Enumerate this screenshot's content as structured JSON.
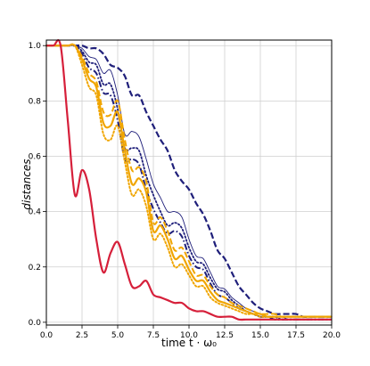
{
  "chart_data": {
    "type": "line",
    "title": "",
    "xlabel": "time t · ω₀",
    "ylabel": "distances",
    "xlim": [
      0,
      20
    ],
    "ylim": [
      -0.01,
      1.02
    ],
    "grid": true,
    "legend": "none",
    "x_ticks": [
      "0.0",
      "2.5",
      "5.0",
      "7.5",
      "10.0",
      "12.5",
      "15.0",
      "17.5",
      "20.0"
    ],
    "y_ticks": [
      "0.0",
      "0.2",
      "0.4",
      "0.6",
      "0.8",
      "1.0"
    ],
    "x": [
      0,
      0.5,
      1,
      1.5,
      2,
      2.5,
      3,
      3.5,
      4,
      4.5,
      5,
      5.5,
      6,
      6.5,
      7,
      7.5,
      8,
      8.5,
      9,
      9.5,
      10,
      10.5,
      11,
      11.5,
      12,
      12.5,
      13,
      13.5,
      14,
      14.5,
      15,
      15.5,
      16,
      16.5,
      17,
      17.5,
      18,
      18.5,
      19,
      19.5,
      20
    ],
    "series": [
      {
        "color": "#1f1f7a",
        "style": "dashed",
        "width": 2.2,
        "values": [
          1.0,
          1.0,
          1.0,
          1.0,
          1.0,
          1.0,
          0.99,
          0.99,
          0.97,
          0.93,
          0.92,
          0.89,
          0.82,
          0.82,
          0.76,
          0.71,
          0.66,
          0.62,
          0.55,
          0.51,
          0.48,
          0.43,
          0.39,
          0.33,
          0.26,
          0.23,
          0.18,
          0.13,
          0.1,
          0.07,
          0.05,
          0.04,
          0.03,
          0.03,
          0.03,
          0.03,
          0.02,
          0.02,
          0.02,
          0.02,
          0.02
        ]
      },
      {
        "color": "#1f1f7a",
        "style": "solid",
        "width": 0.9,
        "values": [
          1.0,
          1.0,
          1.0,
          1.0,
          1.0,
          0.99,
          0.96,
          0.95,
          0.9,
          0.91,
          0.82,
          0.68,
          0.69,
          0.67,
          0.59,
          0.5,
          0.45,
          0.4,
          0.4,
          0.38,
          0.3,
          0.24,
          0.23,
          0.18,
          0.13,
          0.12,
          0.09,
          0.07,
          0.05,
          0.04,
          0.03,
          0.02,
          0.02,
          0.02,
          0.01,
          0.01,
          0.01,
          0.01,
          0.01,
          0.01,
          0.01
        ]
      },
      {
        "color": "#1f1f7a",
        "style": "dotted",
        "width": 1.8,
        "values": [
          1.0,
          1.0,
          1.0,
          1.0,
          1.0,
          0.98,
          0.94,
          0.93,
          0.86,
          0.86,
          0.77,
          0.63,
          0.63,
          0.62,
          0.53,
          0.46,
          0.4,
          0.35,
          0.36,
          0.34,
          0.27,
          0.22,
          0.21,
          0.16,
          0.12,
          0.11,
          0.08,
          0.06,
          0.04,
          0.03,
          0.02,
          0.02,
          0.02,
          0.01,
          0.01,
          0.01,
          0.01,
          0.01,
          0.01,
          0.01,
          0.01
        ]
      },
      {
        "color": "#1f1f7a",
        "style": "dashdot",
        "width": 2.0,
        "values": [
          1.0,
          1.0,
          1.0,
          1.0,
          1.0,
          0.97,
          0.92,
          0.9,
          0.83,
          0.82,
          0.73,
          0.59,
          0.59,
          0.57,
          0.48,
          0.41,
          0.36,
          0.32,
          0.33,
          0.31,
          0.24,
          0.2,
          0.19,
          0.14,
          0.1,
          0.09,
          0.07,
          0.05,
          0.04,
          0.03,
          0.02,
          0.02,
          0.01,
          0.01,
          0.01,
          0.01,
          0.01,
          0.01,
          0.01,
          0.01,
          0.01
        ]
      },
      {
        "color": "#f0a500",
        "style": "dashed",
        "width": 2.0,
        "values": [
          1.0,
          1.0,
          1.0,
          1.0,
          1.0,
          0.96,
          0.9,
          0.87,
          0.76,
          0.75,
          0.8,
          0.66,
          0.55,
          0.56,
          0.51,
          0.36,
          0.38,
          0.33,
          0.26,
          0.27,
          0.22,
          0.17,
          0.17,
          0.13,
          0.1,
          0.09,
          0.07,
          0.06,
          0.05,
          0.04,
          0.03,
          0.03,
          0.03,
          0.02,
          0.02,
          0.02,
          0.02,
          0.02,
          0.02,
          0.02,
          0.02
        ]
      },
      {
        "color": "#f0a500",
        "style": "solid",
        "width": 2.2,
        "values": [
          1.0,
          1.0,
          1.0,
          1.0,
          1.0,
          0.95,
          0.88,
          0.85,
          0.72,
          0.71,
          0.76,
          0.62,
          0.5,
          0.52,
          0.47,
          0.33,
          0.35,
          0.3,
          0.23,
          0.24,
          0.19,
          0.15,
          0.15,
          0.11,
          0.08,
          0.07,
          0.06,
          0.05,
          0.04,
          0.03,
          0.03,
          0.02,
          0.02,
          0.02,
          0.02,
          0.02,
          0.02,
          0.02,
          0.02,
          0.02,
          0.02
        ]
      },
      {
        "color": "#f0a500",
        "style": "dotted",
        "width": 2.0,
        "values": [
          1.0,
          1.0,
          1.0,
          1.0,
          1.0,
          0.93,
          0.85,
          0.82,
          0.68,
          0.66,
          0.71,
          0.58,
          0.46,
          0.48,
          0.42,
          0.3,
          0.32,
          0.27,
          0.2,
          0.21,
          0.17,
          0.13,
          0.13,
          0.09,
          0.07,
          0.06,
          0.05,
          0.04,
          0.03,
          0.03,
          0.02,
          0.02,
          0.02,
          0.02,
          0.02,
          0.02,
          0.02,
          0.02,
          0.02,
          0.02,
          0.02
        ]
      },
      {
        "color": "#d61f3a",
        "style": "solid",
        "width": 2.2,
        "values": [
          1.0,
          1.0,
          1.0,
          0.73,
          0.46,
          0.55,
          0.48,
          0.3,
          0.18,
          0.25,
          0.29,
          0.21,
          0.13,
          0.13,
          0.15,
          0.1,
          0.09,
          0.08,
          0.07,
          0.07,
          0.05,
          0.04,
          0.04,
          0.03,
          0.02,
          0.02,
          0.02,
          0.01,
          0.01,
          0.01,
          0.01,
          0.01,
          0.01,
          0.01,
          0.01,
          0.01,
          0.01,
          0.01,
          0.01,
          0.01,
          0.01
        ]
      }
    ]
  }
}
